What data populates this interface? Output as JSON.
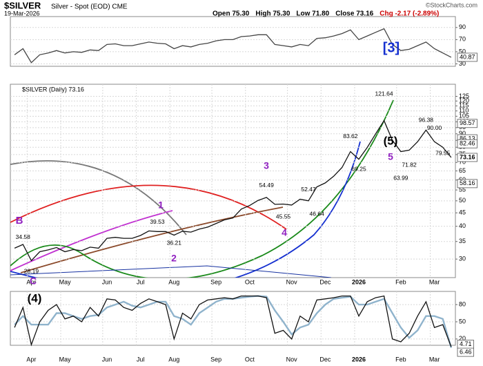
{
  "chart_data": [
    {
      "type": "line",
      "title": "$SILVER",
      "subtitle": "Silver - Spot (EOD) CME",
      "date": "19-Mar-2026",
      "quote": [
        "Open 75.30",
        "High 75.30",
        "Low 71.80",
        "Close 73.16",
        "Chg -2.17 (-2.89%)"
      ],
      "source": "©StockCharts.com",
      "log": true,
      "grid": true,
      "categories": [
        null,
        null,
        "Apr",
        null,
        null,
        null,
        "May",
        null,
        null,
        null,
        null,
        "Jun",
        null,
        null,
        null,
        "Jul",
        null,
        null,
        null,
        "Aug",
        null,
        null,
        null,
        null,
        "Sep",
        null,
        null,
        null,
        "Oct",
        null,
        null,
        null,
        null,
        "Nov",
        null,
        null,
        null,
        "Dec",
        null,
        null,
        null,
        "2026",
        null,
        null,
        null,
        null,
        "Feb",
        null,
        null,
        null,
        "Mar",
        null,
        null
      ],
      "series": [
        {
          "name": "$SILVER (Daily) 73.16",
          "color": "#111111",
          "values": [
            33.0,
            34.1,
            29.6,
            32.0,
            32.5,
            33.2,
            32.0,
            32.6,
            32.3,
            33.3,
            33.0,
            36.0,
            36.3,
            36.0,
            36.0,
            36.9,
            38.4,
            38.2,
            38.2,
            37.0,
            38.3,
            38.0,
            39.0,
            39.7,
            41.0,
            42.3,
            43.0,
            46.5,
            48.0,
            50.2,
            51.5,
            48.5,
            48.6,
            48.2,
            50.7,
            50.0,
            56.5,
            58.5,
            62.0,
            67.0,
            77.0,
            72.0,
            79.8,
            90.0,
            101.0,
            85.0,
            77.0,
            78.0,
            84.0,
            93.0,
            84.0,
            80.0,
            73.16
          ]
        }
      ],
      "ylim": [
        25.5,
        139
      ],
      "yticks": [
        30,
        35,
        40,
        45,
        50,
        55,
        60,
        65,
        70,
        75,
        80,
        85,
        90,
        95,
        100,
        105,
        110,
        115,
        120,
        125
      ],
      "price_labels": [
        34.58,
        28.19,
        39.53,
        36.21,
        54.49,
        45.55,
        52.47,
        46.64,
        83.62,
        69.25,
        121.64,
        63.99,
        71.82,
        96.38,
        {
          "value": 90,
          "label": "90.00"
        },
        79.55
      ],
      "level_labels": [
        98.57,
        86.13,
        82.46,
        58.16
      ],
      "wave_labels": [
        "B",
        "C",
        "(4)",
        "1",
        "2",
        "3",
        "4",
        "5",
        "(5)",
        "[3]"
      ]
    },
    {
      "type": "line",
      "grid": true,
      "series": [
        {
          "color": "#444444",
          "values": [
            45,
            55,
            32,
            45,
            48,
            52,
            48,
            50,
            49,
            53,
            52,
            62,
            63,
            60,
            60,
            63,
            66,
            64,
            63,
            55,
            60,
            58,
            62,
            64,
            68,
            70,
            70,
            75,
            76,
            78,
            78,
            62,
            60,
            58,
            62,
            60,
            72,
            73,
            76,
            80,
            86,
            70,
            76,
            82,
            88,
            62,
            52,
            54,
            60,
            66,
            55,
            48,
            40.87
          ]
        }
      ],
      "ylim": [
        26,
        108
      ],
      "yticks": [
        30,
        50,
        70,
        90
      ]
    },
    {
      "type": "line",
      "grid": true,
      "series": [
        {
          "color": "#8fb3cc",
          "values": [
            45,
            60,
            45,
            45,
            45,
            65,
            65,
            60,
            55,
            60,
            62,
            75,
            80,
            85,
            78,
            75,
            80,
            85,
            85,
            60,
            55,
            45,
            65,
            75,
            85,
            90,
            90,
            92,
            94,
            95,
            94,
            70,
            50,
            28,
            40,
            45,
            65,
            80,
            90,
            92,
            94,
            80,
            80,
            85,
            90,
            65,
            40,
            22,
            35,
            60,
            60,
            55,
            4.71
          ]
        },
        {
          "color": "#111111",
          "values": [
            40,
            75,
            10,
            50,
            70,
            80,
            55,
            60,
            50,
            75,
            60,
            90,
            88,
            75,
            70,
            82,
            90,
            85,
            80,
            20,
            65,
            55,
            80,
            88,
            90,
            92,
            90,
            95,
            95,
            95,
            92,
            30,
            35,
            20,
            60,
            50,
            88,
            90,
            92,
            95,
            95,
            60,
            85,
            92,
            95,
            20,
            15,
            30,
            60,
            85,
            40,
            45,
            6.46
          ]
        }
      ],
      "ylim": [
        9,
        103
      ],
      "yticks": [
        20,
        50,
        80
      ]
    }
  ]
}
